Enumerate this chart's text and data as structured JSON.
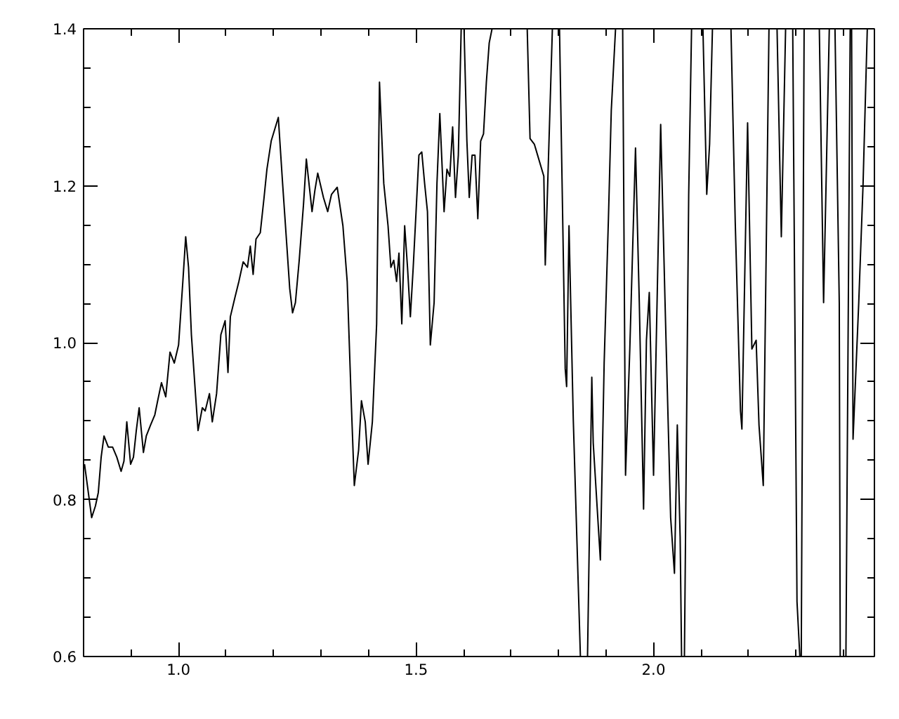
{
  "chart_data": {
    "type": "line",
    "xlim": [
      0.8,
      2.465
    ],
    "ylim": [
      0.6,
      1.4
    ],
    "xticks": [
      {
        "value": 0.8,
        "label": null
      },
      {
        "value": 0.9,
        "label": null
      },
      {
        "value": 1.0,
        "label": "1.0"
      },
      {
        "value": 1.1,
        "label": null
      },
      {
        "value": 1.2,
        "label": null
      },
      {
        "value": 1.3,
        "label": null
      },
      {
        "value": 1.4,
        "label": null
      },
      {
        "value": 1.5,
        "label": "1.5"
      },
      {
        "value": 1.6,
        "label": null
      },
      {
        "value": 1.7,
        "label": null
      },
      {
        "value": 1.8,
        "label": null
      },
      {
        "value": 1.9,
        "label": null
      },
      {
        "value": 2.0,
        "label": "2.0"
      },
      {
        "value": 2.1,
        "label": null
      },
      {
        "value": 2.2,
        "label": null
      },
      {
        "value": 2.3,
        "label": null
      },
      {
        "value": 2.4,
        "label": null
      }
    ],
    "yticks": [
      {
        "value": 0.6,
        "label": "0.6"
      },
      {
        "value": 0.65,
        "label": null
      },
      {
        "value": 0.7,
        "label": null
      },
      {
        "value": 0.75,
        "label": null
      },
      {
        "value": 0.8,
        "label": "0.8"
      },
      {
        "value": 0.85,
        "label": null
      },
      {
        "value": 0.9,
        "label": null
      },
      {
        "value": 0.95,
        "label": null
      },
      {
        "value": 1.0,
        "label": "1.0"
      },
      {
        "value": 1.05,
        "label": null
      },
      {
        "value": 1.1,
        "label": null
      },
      {
        "value": 1.15,
        "label": null
      },
      {
        "value": 1.2,
        "label": "1.2"
      },
      {
        "value": 1.25,
        "label": null
      },
      {
        "value": 1.3,
        "label": null
      },
      {
        "value": 1.35,
        "label": null
      },
      {
        "value": 1.4,
        "label": "1.4"
      }
    ],
    "grid": false,
    "line_style": "solid",
    "marker": "none",
    "series": [
      {
        "color": "#000000",
        "x": [
          0.802,
          0.808,
          0.817,
          0.825,
          0.831,
          0.837,
          0.843,
          0.852,
          0.861,
          0.87,
          0.879,
          0.885,
          0.891,
          0.899,
          0.905,
          0.911,
          0.917,
          0.926,
          0.932,
          0.941,
          0.95,
          0.956,
          0.964,
          0.973,
          0.982,
          0.991,
          1.0,
          1.009,
          1.015,
          1.021,
          1.027,
          1.036,
          1.041,
          1.05,
          1.056,
          1.065,
          1.071,
          1.08,
          1.089,
          1.098,
          1.104,
          1.109,
          1.118,
          1.127,
          1.136,
          1.145,
          1.151,
          1.157,
          1.163,
          1.172,
          1.18,
          1.186,
          1.195,
          1.21,
          1.219,
          1.228,
          1.234,
          1.24,
          1.246,
          1.254,
          1.263,
          1.269,
          1.281,
          1.287,
          1.293,
          1.305,
          1.314,
          1.322,
          1.334,
          1.346,
          1.355,
          1.364,
          1.37,
          1.379,
          1.385,
          1.393,
          1.399,
          1.408,
          1.417,
          1.423,
          1.432,
          1.441,
          1.447,
          1.453,
          1.459,
          1.464,
          1.47,
          1.476,
          1.482,
          1.488,
          1.494,
          1.5,
          1.506,
          1.512,
          1.518,
          1.524,
          1.53,
          1.538,
          1.544,
          1.55,
          1.559,
          1.565,
          1.571,
          1.577,
          1.583,
          1.589,
          1.595,
          1.598,
          1.601,
          1.607,
          1.612,
          1.618,
          1.624,
          1.63,
          1.636,
          1.642,
          1.648,
          1.654,
          1.66,
          1.7,
          1.734,
          1.74,
          1.749,
          1.769,
          1.772,
          1.787,
          1.795,
          1.802,
          1.814,
          1.817,
          1.822,
          1.831,
          1.846,
          1.853,
          1.861,
          1.87,
          1.873,
          1.888,
          1.896,
          1.905,
          1.911,
          1.92,
          1.928,
          1.935,
          1.941,
          1.95,
          1.962,
          1.97,
          1.979,
          1.985,
          1.991,
          2.0,
          2.015,
          2.024,
          2.036,
          2.044,
          2.05,
          2.056,
          2.059,
          2.062,
          2.065,
          2.074,
          2.08,
          2.092,
          2.104,
          2.112,
          2.118,
          2.124,
          2.143,
          2.163,
          2.172,
          2.183,
          2.186,
          2.198,
          2.207,
          2.216,
          2.222,
          2.231,
          2.243,
          2.251,
          2.26,
          2.269,
          2.278,
          2.285,
          2.293,
          2.302,
          2.308,
          2.31,
          2.311,
          2.317,
          2.333,
          2.349,
          2.358,
          2.37,
          2.376,
          2.382,
          2.391,
          2.393,
          2.399,
          2.405,
          2.414,
          2.416,
          2.417,
          2.42,
          2.432,
          2.441,
          2.45
        ],
        "values": [
          0.845,
          0.818,
          0.777,
          0.792,
          0.809,
          0.854,
          0.881,
          0.867,
          0.867,
          0.854,
          0.836,
          0.849,
          0.899,
          0.845,
          0.854,
          0.888,
          0.917,
          0.86,
          0.881,
          0.895,
          0.908,
          0.926,
          0.949,
          0.931,
          0.988,
          0.974,
          0.997,
          1.078,
          1.135,
          1.096,
          1.01,
          0.931,
          0.888,
          0.917,
          0.913,
          0.935,
          0.899,
          0.935,
          1.01,
          1.028,
          0.962,
          1.033,
          1.056,
          1.078,
          1.103,
          1.096,
          1.123,
          1.087,
          1.132,
          1.14,
          1.185,
          1.221,
          1.257,
          1.287,
          1.203,
          1.123,
          1.069,
          1.038,
          1.051,
          1.105,
          1.176,
          1.234,
          1.167,
          1.194,
          1.216,
          1.185,
          1.167,
          1.189,
          1.198,
          1.149,
          1.078,
          0.917,
          0.818,
          0.863,
          0.926,
          0.899,
          0.845,
          0.899,
          1.024,
          1.332,
          1.203,
          1.149,
          1.096,
          1.105,
          1.078,
          1.114,
          1.024,
          1.149,
          1.096,
          1.033,
          1.096,
          1.167,
          1.239,
          1.243,
          1.203,
          1.167,
          0.997,
          1.051,
          1.203,
          1.292,
          1.167,
          1.221,
          1.212,
          1.275,
          1.185,
          1.239,
          1.4,
          null,
          1.4,
          1.257,
          1.185,
          1.239,
          1.239,
          1.158,
          1.257,
          1.266,
          1.332,
          1.382,
          1.4,
          null,
          1.4,
          1.26,
          1.253,
          1.212,
          1.099,
          1.4,
          null,
          1.4,
          0.967,
          0.944,
          1.149,
          0.902,
          0.6,
          null,
          0.6,
          0.956,
          0.872,
          0.723,
          0.974,
          1.158,
          1.296,
          1.4,
          null,
          1.4,
          0.831,
          0.992,
          1.248,
          1.051,
          0.788,
          1.003,
          1.064,
          0.831,
          1.278,
          1.056,
          0.777,
          0.706,
          0.895,
          0.752,
          0.6,
          null,
          0.6,
          1.189,
          1.4,
          null,
          1.4,
          1.189,
          1.253,
          1.4,
          null,
          1.4,
          1.153,
          0.913,
          0.89,
          1.28,
          0.992,
          1.003,
          0.895,
          0.818,
          1.4,
          null,
          1.4,
          1.135,
          1.4,
          null,
          1.4,
          0.67,
          0.6,
          null,
          0.6,
          1.4,
          null,
          1.4,
          1.051,
          1.4,
          null,
          1.4,
          1.051,
          0.6,
          null,
          0.6,
          1.4,
          null,
          1.4,
          0.877,
          1.051,
          1.2,
          1.4
        ]
      }
    ]
  }
}
